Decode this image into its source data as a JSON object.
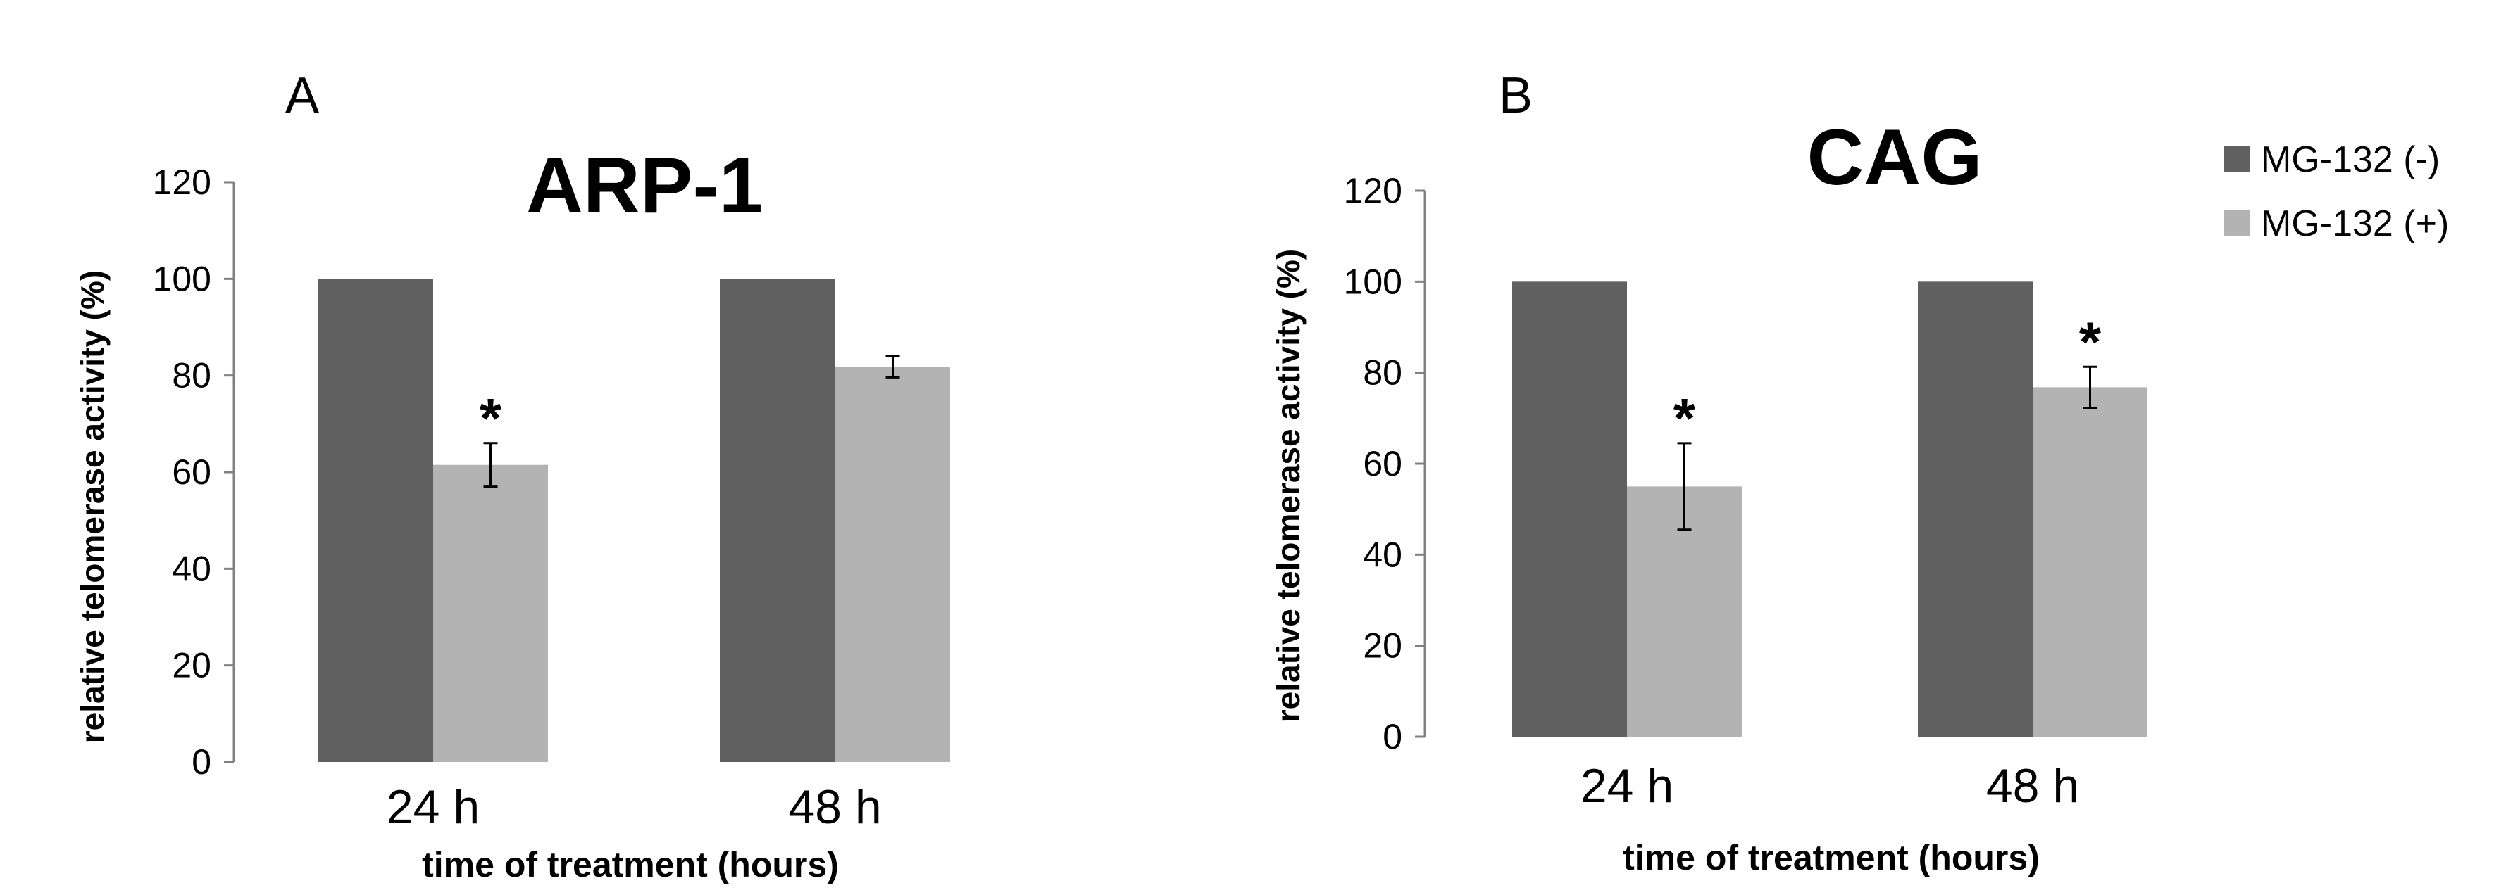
{
  "legend": {
    "series": [
      {
        "name": "MG-132 (-)",
        "color": "#606060"
      },
      {
        "name": "MG-132 (+)",
        "color": "#b3b3b3"
      }
    ]
  },
  "chart_data": [
    {
      "type": "bar",
      "panel_label": "A",
      "title": "ARP-1",
      "xlabel": "time of treatment (hours)",
      "ylabel": "relative  telomerase  activity (%)",
      "categories": [
        "24 h",
        "48 h"
      ],
      "ylim": [
        0,
        120
      ],
      "yticks": [
        0,
        20,
        40,
        60,
        80,
        100,
        120
      ],
      "series": [
        {
          "name": "MG-132 (-)",
          "values": [
            100,
            100
          ],
          "errors": [
            null,
            null
          ]
        },
        {
          "name": "MG-132 (+)",
          "values": [
            61.5,
            81.8
          ],
          "errors": [
            4.5,
            2.2
          ]
        }
      ],
      "significance": [
        {
          "category": "24 h",
          "series": "MG-132 (+)",
          "mark": "*"
        }
      ]
    },
    {
      "type": "bar",
      "panel_label": "B",
      "title": "CAG",
      "xlabel": "time of treatment (hours)",
      "ylabel": "relative  telomerase  activity (%)",
      "categories": [
        "24 h",
        "48 h"
      ],
      "ylim": [
        0,
        120
      ],
      "yticks": [
        0,
        20,
        40,
        60,
        80,
        100,
        120
      ],
      "series": [
        {
          "name": "MG-132 (-)",
          "values": [
            100,
            100
          ],
          "errors": [
            null,
            null
          ]
        },
        {
          "name": "MG-132 (+)",
          "values": [
            55,
            76.8
          ],
          "errors": [
            9.5,
            4.5
          ]
        }
      ],
      "significance": [
        {
          "category": "24 h",
          "series": "MG-132 (+)",
          "mark": "*"
        },
        {
          "category": "48 h",
          "series": "MG-132 (+)",
          "mark": "*"
        }
      ]
    }
  ]
}
